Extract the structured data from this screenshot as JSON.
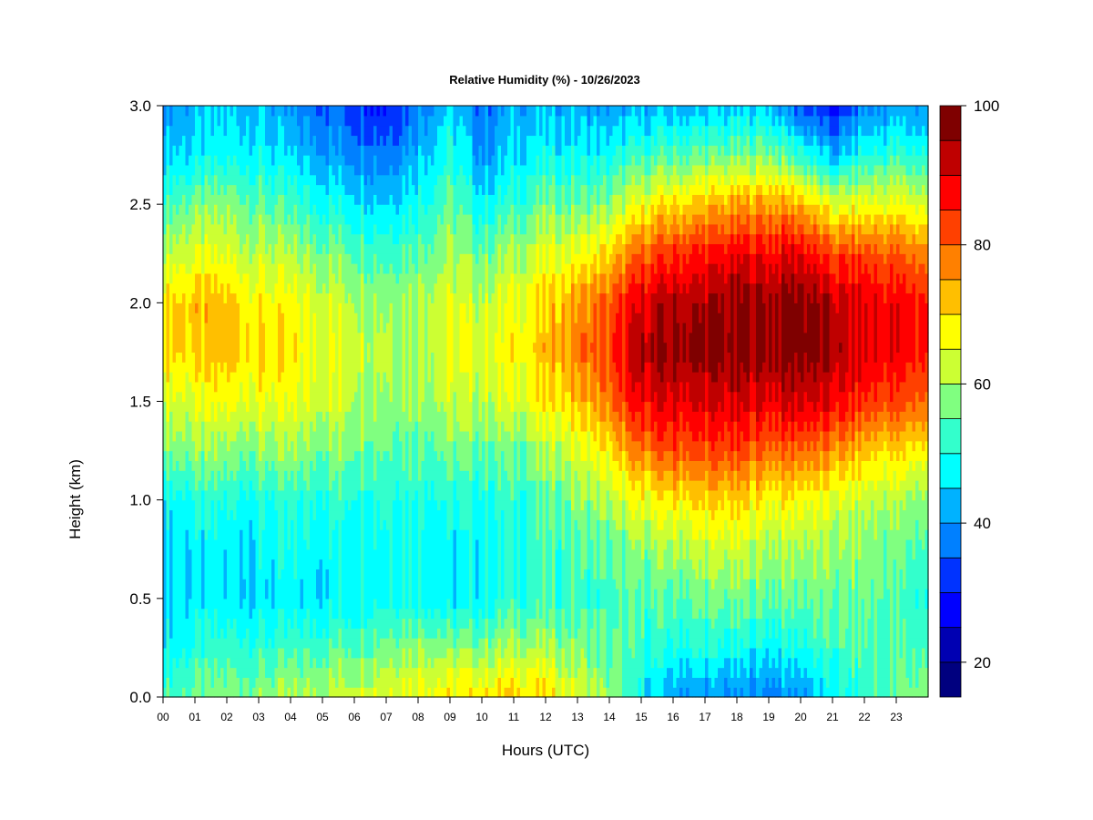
{
  "chart_data": {
    "type": "heatmap",
    "title": "Relative Humidity (%) - 10/26/2023",
    "xlabel": "Hours (UTC)",
    "ylabel": "Height (km)",
    "xlim": [
      0,
      24
    ],
    "ylim": [
      0,
      3
    ],
    "x_ticks": [
      "00",
      "01",
      "02",
      "03",
      "04",
      "05",
      "06",
      "07",
      "08",
      "09",
      "10",
      "11",
      "12",
      "13",
      "14",
      "15",
      "16",
      "17",
      "18",
      "19",
      "20",
      "21",
      "22",
      "23"
    ],
    "y_ticks": [
      "0.0",
      "0.5",
      "1.0",
      "1.5",
      "2.0",
      "2.5",
      "3.0"
    ],
    "colorbar": {
      "range": [
        15,
        100
      ],
      "tick_labels": [
        "20",
        "40",
        "60",
        "80",
        "100"
      ],
      "tick_values": [
        20,
        40,
        60,
        80,
        100
      ],
      "levels": [
        {
          "min": 15,
          "max": 20,
          "color": "#00007f"
        },
        {
          "min": 20,
          "max": 25,
          "color": "#0000b2"
        },
        {
          "min": 25,
          "max": 30,
          "color": "#0000ff"
        },
        {
          "min": 30,
          "max": 35,
          "color": "#0033ff"
        },
        {
          "min": 35,
          "max": 40,
          "color": "#0080ff"
        },
        {
          "min": 40,
          "max": 45,
          "color": "#00b2ff"
        },
        {
          "min": 45,
          "max": 50,
          "color": "#00ffff"
        },
        {
          "min": 50,
          "max": 55,
          "color": "#33ffcc"
        },
        {
          "min": 55,
          "max": 60,
          "color": "#80ff80"
        },
        {
          "min": 60,
          "max": 65,
          "color": "#ccff33"
        },
        {
          "min": 65,
          "max": 70,
          "color": "#ffff00"
        },
        {
          "min": 70,
          "max": 75,
          "color": "#ffbf00"
        },
        {
          "min": 75,
          "max": 80,
          "color": "#ff8000"
        },
        {
          "min": 80,
          "max": 85,
          "color": "#ff4000"
        },
        {
          "min": 85,
          "max": 90,
          "color": "#ff0000"
        },
        {
          "min": 90,
          "max": 95,
          "color": "#bf0000"
        },
        {
          "min": 95,
          "max": 100,
          "color": "#7f0000"
        }
      ]
    },
    "x_hours": [
      0,
      1,
      2,
      3,
      4,
      5,
      6,
      7,
      8,
      9,
      10,
      11,
      12,
      13,
      14,
      15,
      16,
      17,
      18,
      19,
      20,
      21,
      22,
      23,
      24
    ],
    "heights_km": [
      0.0,
      0.25,
      0.5,
      0.75,
      1.0,
      1.25,
      1.5,
      1.75,
      2.0,
      2.25,
      2.5,
      2.75,
      3.0
    ],
    "z_rh_percent": [
      [
        54,
        48,
        46,
        46,
        48,
        58,
        64,
        72,
        70,
        62,
        54,
        46,
        40
      ],
      [
        56,
        50,
        46,
        46,
        50,
        58,
        64,
        70,
        72,
        64,
        56,
        46,
        42
      ],
      [
        58,
        52,
        46,
        46,
        50,
        58,
        66,
        72,
        72,
        64,
        58,
        48,
        44
      ],
      [
        58,
        52,
        46,
        47,
        50,
        58,
        66,
        70,
        68,
        62,
        56,
        48,
        44
      ],
      [
        60,
        52,
        46,
        48,
        50,
        58,
        64,
        68,
        66,
        60,
        52,
        44,
        38
      ],
      [
        62,
        54,
        47,
        48,
        52,
        58,
        64,
        66,
        64,
        58,
        50,
        42,
        36
      ],
      [
        64,
        56,
        48,
        48,
        52,
        58,
        62,
        64,
        62,
        56,
        48,
        40,
        34
      ],
      [
        66,
        58,
        50,
        50,
        52,
        56,
        60,
        62,
        60,
        54,
        46,
        38,
        30
      ],
      [
        68,
        60,
        50,
        50,
        52,
        56,
        60,
        62,
        62,
        56,
        50,
        44,
        38
      ],
      [
        68,
        58,
        46,
        46,
        50,
        56,
        62,
        64,
        64,
        60,
        56,
        50,
        46
      ],
      [
        70,
        58,
        48,
        48,
        50,
        56,
        62,
        64,
        62,
        56,
        48,
        40,
        36
      ],
      [
        72,
        60,
        52,
        50,
        52,
        56,
        64,
        68,
        66,
        60,
        52,
        46,
        42
      ],
      [
        70,
        60,
        52,
        52,
        54,
        60,
        68,
        72,
        70,
        64,
        56,
        48,
        42
      ],
      [
        64,
        58,
        52,
        54,
        58,
        64,
        72,
        78,
        76,
        66,
        56,
        48,
        42
      ],
      [
        58,
        54,
        52,
        54,
        60,
        68,
        78,
        82,
        80,
        70,
        58,
        48,
        40
      ],
      [
        48,
        52,
        54,
        58,
        66,
        78,
        88,
        94,
        90,
        80,
        66,
        52,
        42
      ],
      [
        40,
        50,
        54,
        60,
        68,
        82,
        90,
        96,
        94,
        84,
        70,
        54,
        42
      ],
      [
        40,
        50,
        56,
        62,
        70,
        82,
        90,
        96,
        94,
        86,
        72,
        56,
        42
      ],
      [
        38,
        48,
        56,
        62,
        70,
        82,
        90,
        96,
        96,
        88,
        74,
        56,
        44
      ],
      [
        38,
        48,
        56,
        60,
        68,
        80,
        90,
        96,
        96,
        88,
        76,
        58,
        44
      ],
      [
        40,
        50,
        56,
        60,
        68,
        80,
        92,
        98,
        98,
        90,
        74,
        52,
        34
      ],
      [
        46,
        52,
        56,
        58,
        64,
        76,
        88,
        94,
        92,
        82,
        64,
        42,
        28
      ],
      [
        52,
        54,
        56,
        58,
        62,
        72,
        84,
        90,
        90,
        82,
        66,
        50,
        38
      ],
      [
        56,
        54,
        54,
        56,
        60,
        70,
        82,
        88,
        88,
        80,
        66,
        52,
        40
      ],
      [
        58,
        54,
        50,
        54,
        58,
        68,
        80,
        86,
        86,
        78,
        64,
        50,
        40
      ]
    ]
  }
}
